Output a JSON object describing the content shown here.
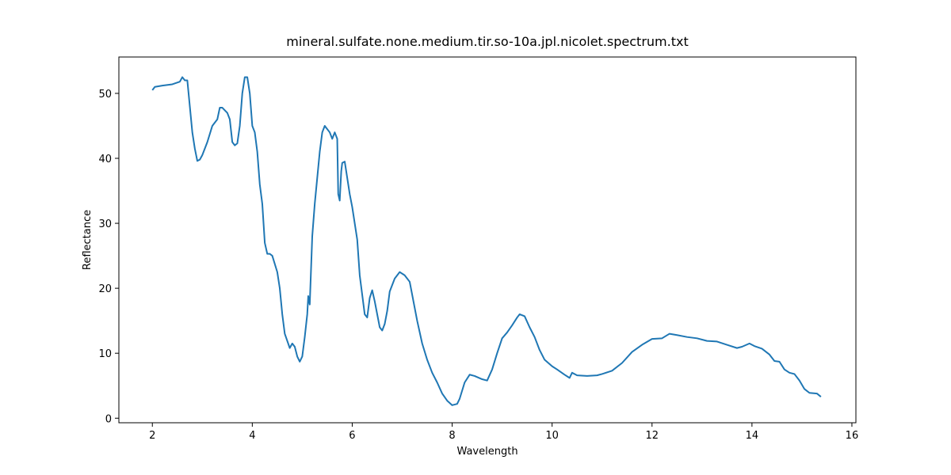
{
  "chart_data": {
    "type": "line",
    "title": "mineral.sulfate.none.medium.tir.so-10a.jpl.nicolet.spectrum.txt",
    "x_label": "Wavelength",
    "y_label": "Reflectance",
    "xlim": [
      1.33,
      16.08
    ],
    "ylim": [
      -0.7,
      55.6
    ],
    "xticks": [
      2,
      4,
      6,
      8,
      10,
      12,
      14,
      16
    ],
    "yticks": [
      0,
      10,
      20,
      30,
      40,
      50
    ],
    "grid": false,
    "series": [
      {
        "color": "#1f77b4",
        "x": [
          2.0,
          2.05,
          2.2,
          2.4,
          2.55,
          2.6,
          2.65,
          2.7,
          2.75,
          2.8,
          2.85,
          2.9,
          2.95,
          3.0,
          3.1,
          3.2,
          3.3,
          3.35,
          3.4,
          3.5,
          3.55,
          3.6,
          3.65,
          3.7,
          3.75,
          3.8,
          3.85,
          3.9,
          3.95,
          4.0,
          4.05,
          4.1,
          4.15,
          4.2,
          4.25,
          4.3,
          4.35,
          4.4,
          4.5,
          4.55,
          4.6,
          4.65,
          4.75,
          4.8,
          4.85,
          4.9,
          4.95,
          5.0,
          5.05,
          5.1,
          5.12,
          5.15,
          5.2,
          5.25,
          5.3,
          5.35,
          5.4,
          5.45,
          5.55,
          5.6,
          5.65,
          5.7,
          5.72,
          5.75,
          5.78,
          5.8,
          5.85,
          5.9,
          5.95,
          6.0,
          6.05,
          6.1,
          6.15,
          6.2,
          6.25,
          6.3,
          6.35,
          6.4,
          6.45,
          6.5,
          6.55,
          6.6,
          6.65,
          6.7,
          6.75,
          6.85,
          6.95,
          7.05,
          7.15,
          7.2,
          7.3,
          7.4,
          7.5,
          7.6,
          7.7,
          7.8,
          7.9,
          8.0,
          8.1,
          8.15,
          8.25,
          8.35,
          8.45,
          8.6,
          8.7,
          8.8,
          8.9,
          9.0,
          9.1,
          9.2,
          9.3,
          9.35,
          9.45,
          9.55,
          9.65,
          9.75,
          9.85,
          10.0,
          10.1,
          10.25,
          10.35,
          10.4,
          10.5,
          10.7,
          10.9,
          11.0,
          11.2,
          11.4,
          11.6,
          11.8,
          12.0,
          12.2,
          12.35,
          12.5,
          12.7,
          12.9,
          13.1,
          13.3,
          13.5,
          13.7,
          13.8,
          13.95,
          14.05,
          14.2,
          14.35,
          14.45,
          14.55,
          14.65,
          14.75,
          14.85,
          14.95,
          15.05,
          15.15,
          15.3,
          15.38
        ],
        "values": [
          50.5,
          51,
          51.2,
          51.4,
          51.8,
          52.5,
          52,
          52,
          48,
          44,
          41.5,
          39.6,
          39.8,
          40.5,
          42.5,
          45,
          46,
          47.8,
          47.8,
          47,
          46,
          42.5,
          42,
          42.3,
          45,
          50,
          52.5,
          52.5,
          50,
          45,
          44,
          41,
          36,
          33,
          27,
          25.3,
          25.3,
          25,
          22.5,
          20,
          16,
          13,
          10.8,
          11.5,
          11,
          9.5,
          8.7,
          9.5,
          12.5,
          16,
          18.8,
          17.5,
          28,
          33,
          37,
          41,
          44,
          45,
          44,
          43,
          44,
          43,
          34.5,
          33.5,
          38,
          39.3,
          39.5,
          37,
          34.5,
          32.5,
          30,
          27.5,
          22,
          19,
          16,
          15.5,
          18.5,
          19.7,
          18,
          16,
          14,
          13.5,
          14.5,
          16.5,
          19.5,
          21.5,
          22.5,
          22,
          21,
          19,
          15,
          11.5,
          9,
          7,
          5.5,
          3.8,
          2.7,
          2,
          2.2,
          3,
          5.5,
          6.7,
          6.5,
          6,
          5.8,
          7.5,
          10,
          12.3,
          13.2,
          14.3,
          15.5,
          16,
          15.7,
          14,
          12.5,
          10.5,
          9,
          8,
          7.5,
          6.7,
          6.2,
          7,
          6.6,
          6.5,
          6.6,
          6.8,
          7.3,
          8.5,
          10.2,
          11.3,
          12.2,
          12.3,
          13,
          12.8,
          12.5,
          12.3,
          11.9,
          11.8,
          11.3,
          10.8,
          11,
          11.5,
          11.1,
          10.7,
          9.8,
          8.8,
          8.7,
          7.5,
          7,
          6.8,
          5.8,
          4.5,
          3.9,
          3.8,
          3.3
        ]
      }
    ]
  }
}
